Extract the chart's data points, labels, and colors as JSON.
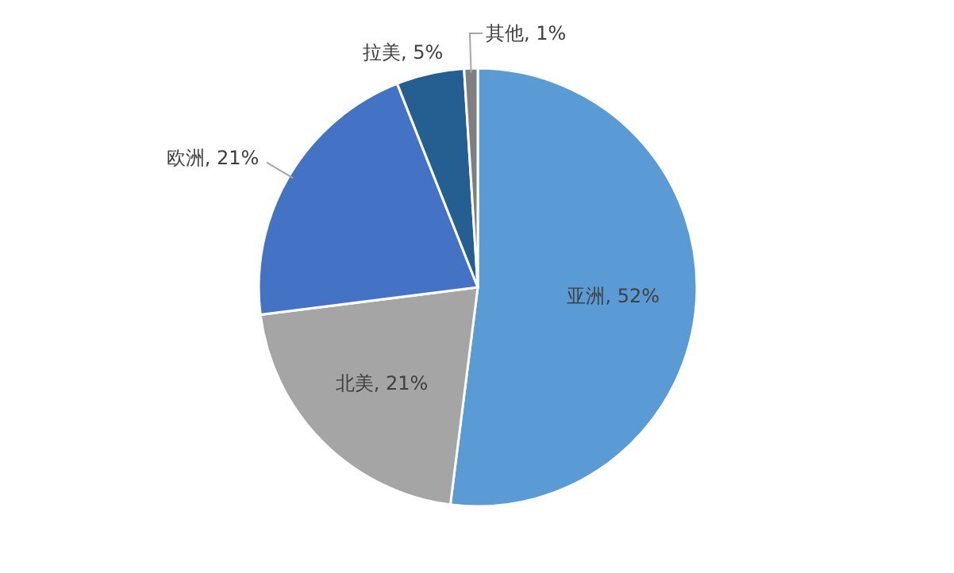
{
  "chart_data": {
    "type": "pie",
    "categories": [
      "亚洲",
      "北美",
      "欧洲",
      "拉美",
      "其他"
    ],
    "values": [
      52,
      21,
      21,
      5,
      1
    ],
    "value_labels": [
      "52%",
      "21%",
      "21%",
      "5%",
      "1%"
    ],
    "colors": [
      "#5b9bd5",
      "#a5a5a5",
      "#4472c4",
      "#255e91",
      "#7f7f7f"
    ],
    "legend": false
  }
}
